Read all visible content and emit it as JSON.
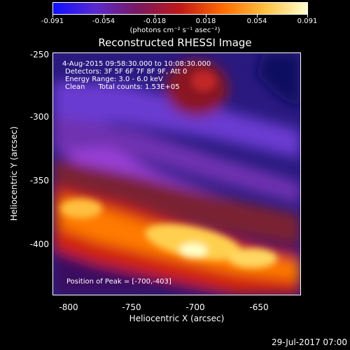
{
  "colorbar": {
    "labels": [
      "-0.091",
      "-0.054",
      "-0.018",
      "0.018",
      "0.054",
      "0.091"
    ],
    "unit": "(photons cm⁻² s⁻¹ asec⁻²)",
    "colors": [
      "#1010ff",
      "#5a2ad0",
      "#7a1860",
      "#c01818",
      "#ff6a00",
      "#ffc040",
      "#ffffd0"
    ]
  },
  "plot": {
    "title": "Reconstructed RHESSI Image",
    "time_range": "4-Aug-2015 09:58:30.000 to 10:08:30.000",
    "detectors": "Detectors: 3F 5F 6F 7F 8F 9F, Att 0",
    "energy": "Energy Range: 3.0 - 6.0 keV",
    "clean": "Clean      Total counts: 1.53E+05",
    "peak": "Position of Peak = [-700,-403]",
    "xlabel": "Heliocentric X (arcsec)",
    "ylabel": "Heliocentric Y (arcsec)",
    "xticks": [
      "-800",
      "-750",
      "-700",
      "-650"
    ],
    "yticks": [
      "-250",
      "-300",
      "-350",
      "-400"
    ]
  },
  "datestamp": "29-Jul-2017 07:00"
}
